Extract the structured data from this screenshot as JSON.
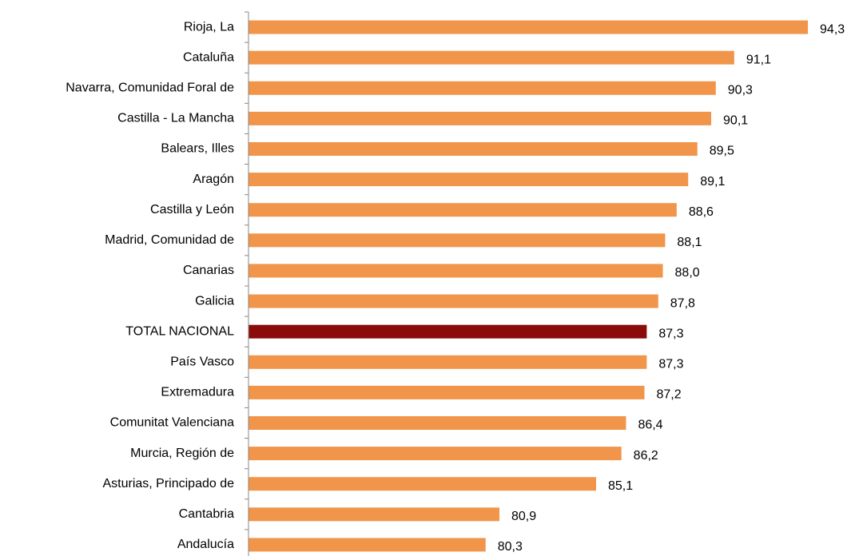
{
  "chart_data": {
    "type": "hbar",
    "categories": [
      "Rioja, La",
      "Cataluña",
      "Navarra, Comunidad Foral de",
      "Castilla - La Mancha",
      "Balears, Illes",
      "Aragón",
      "Castilla y León",
      "Madrid, Comunidad de",
      "Canarias",
      "Galicia",
      "TOTAL NACIONAL",
      "País Vasco",
      "Extremadura",
      "Comunitat Valenciana",
      "Murcia, Región de",
      "Asturias, Principado de",
      "Cantabria",
      "Andalucía"
    ],
    "values": [
      94.3,
      91.1,
      90.3,
      90.1,
      89.5,
      89.1,
      88.6,
      88.1,
      88.0,
      87.8,
      87.3,
      87.3,
      87.2,
      86.4,
      86.2,
      85.1,
      80.9,
      80.3
    ],
    "value_labels": [
      "94,3",
      "91,1",
      "90,3",
      "90,1",
      "89,5",
      "89,1",
      "88,6",
      "88,1",
      "88,0",
      "87,8",
      "87,3",
      "87,3",
      "87,2",
      "86,4",
      "86,2",
      "85,1",
      "80,9",
      "80,3"
    ],
    "colors": [
      "#f0954a",
      "#f0954a",
      "#f0954a",
      "#f0954a",
      "#f0954a",
      "#f0954a",
      "#f0954a",
      "#f0954a",
      "#f0954a",
      "#f0954a",
      "#8b0a0a",
      "#f0954a",
      "#f0954a",
      "#f0954a",
      "#f0954a",
      "#f0954a",
      "#f0954a",
      "#f0954a"
    ],
    "xlim": [
      70,
      96
    ]
  }
}
